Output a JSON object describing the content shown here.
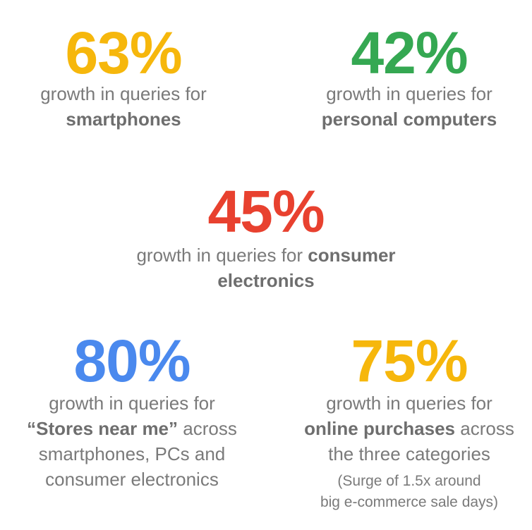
{
  "stats": [
    {
      "figure": "63%",
      "color": "#F6B70C",
      "lines": [
        [
          {
            "text": "growth in queries for",
            "bold": false
          }
        ],
        [
          {
            "text": "smartphones",
            "bold": true
          }
        ]
      ]
    },
    {
      "figure": "42%",
      "color": "#35A852",
      "lines": [
        [
          {
            "text": "growth in queries for",
            "bold": false
          }
        ],
        [
          {
            "text": "personal computers",
            "bold": true
          }
        ]
      ]
    },
    {
      "figure": "45%",
      "color": "#E8412F",
      "lines": [
        [
          {
            "text": "growth in queries for ",
            "bold": false
          },
          {
            "text": "consumer",
            "bold": true
          }
        ],
        [
          {
            "text": "electronics",
            "bold": true
          }
        ]
      ]
    },
    {
      "figure": "80%",
      "color": "#4A89EE",
      "lines": [
        [
          {
            "text": "growth in queries for",
            "bold": false
          }
        ],
        [
          {
            "text": "“Stores near me”",
            "bold": true
          },
          {
            "text": " across",
            "bold": false
          }
        ],
        [
          {
            "text": "smartphones, PCs and",
            "bold": false
          }
        ],
        [
          {
            "text": "consumer electronics",
            "bold": false
          }
        ]
      ]
    },
    {
      "figure": "75%",
      "color": "#F6B70C",
      "lines": [
        [
          {
            "text": "growth in queries for",
            "bold": false
          }
        ],
        [
          {
            "text": "online purchases",
            "bold": true
          },
          {
            "text": " across",
            "bold": false
          }
        ],
        [
          {
            "text": "the three categories",
            "bold": false
          }
        ]
      ],
      "note": [
        "(Surge of 1.5x around",
        "big e-commerce sale days)"
      ]
    }
  ]
}
